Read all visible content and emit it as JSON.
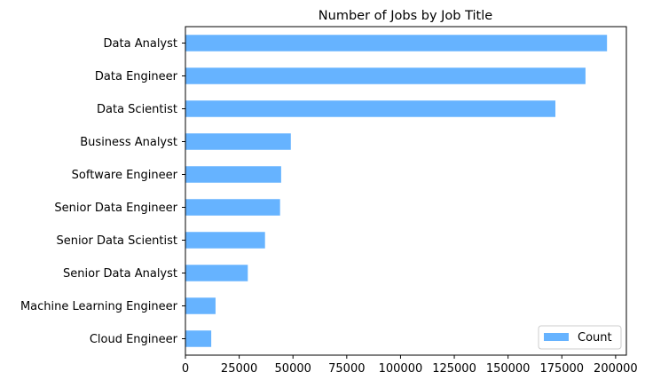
{
  "chart_data": {
    "type": "bar",
    "orientation": "horizontal",
    "title": "Number of Jobs by Job Title",
    "xlabel": "",
    "ylabel": "",
    "categories": [
      "Data Analyst",
      "Data Engineer",
      "Data Scientist",
      "Business Analyst",
      "Software Engineer",
      "Senior Data Engineer",
      "Senior Data Scientist",
      "Senior Data Analyst",
      "Machine Learning Engineer",
      "Cloud Engineer"
    ],
    "series": [
      {
        "name": "Count",
        "values": [
          196000,
          186000,
          172000,
          49000,
          44500,
          44000,
          37000,
          29000,
          14000,
          12000
        ]
      }
    ],
    "xlim": [
      0,
      205000
    ],
    "xticks": [
      0,
      25000,
      50000,
      75000,
      100000,
      125000,
      150000,
      175000,
      200000
    ],
    "grid": false,
    "legend": "bottom-right",
    "colors": {
      "bar": "#66b3ff"
    }
  }
}
